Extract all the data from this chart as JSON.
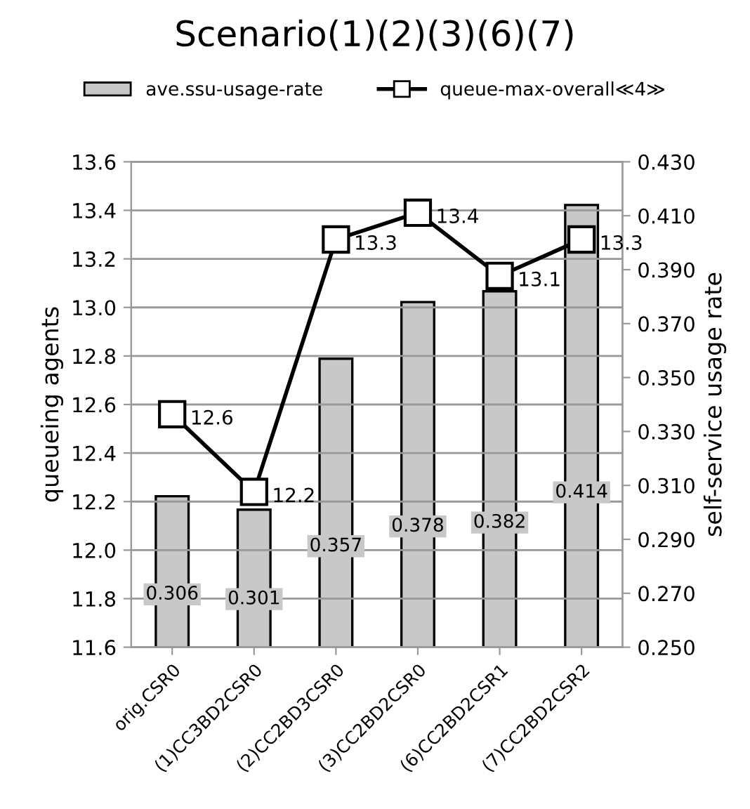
{
  "chart_data": {
    "type": "bar",
    "title": "Scenario(1)(2)(3)(6)(7)",
    "ylabel": "queueing agents",
    "y2label": "self-service usage rate",
    "categories": [
      "orig.CSR0",
      "(1)CC3BD2CSR0",
      "(2)CC2BD3CSR0",
      "(3)CC2BD2CSR0",
      "(6)CC2BD2CSR1",
      "(7)CC2BD2CSR2"
    ],
    "series": [
      {
        "name": "ave.ssu-usage-rate",
        "type": "bar",
        "axis": "y2",
        "color": "#c8c8c8",
        "values": [
          0.306,
          0.301,
          0.357,
          0.378,
          0.382,
          0.414
        ],
        "value_labels": [
          "0.306",
          "0.301",
          "0.357",
          "0.378",
          "0.382",
          "0.414"
        ]
      },
      {
        "name": "queue-max-overall≪4≫",
        "type": "line",
        "color": "#000000",
        "marker": "square",
        "line_style": "solid",
        "values": [
          12.56,
          12.24,
          13.28,
          13.39,
          13.13,
          13.28
        ],
        "value_labels": [
          "12.6",
          "12.2",
          "13.3",
          "13.4",
          "13.1",
          "13.3"
        ]
      }
    ],
    "ylim": [
      11.6,
      13.6
    ],
    "yticks": [
      11.6,
      11.8,
      {
        "value": 12.0,
        "label": "12.0"
      },
      12.2,
      12.4,
      12.6,
      12.8,
      {
        "value": 13.0,
        "label": "13.0"
      },
      13.2,
      13.4,
      13.6
    ],
    "y2lim": [
      0.25,
      0.43
    ],
    "y2ticks": [
      {
        "value": 0.25,
        "label": "0.250"
      },
      {
        "value": 0.27,
        "label": "0.270"
      },
      {
        "value": 0.29,
        "label": "0.290"
      },
      {
        "value": 0.31,
        "label": "0.310"
      },
      {
        "value": 0.33,
        "label": "0.330"
      },
      {
        "value": 0.35,
        "label": "0.350"
      },
      {
        "value": 0.37,
        "label": "0.370"
      },
      {
        "value": 0.39,
        "label": "0.390"
      },
      {
        "value": 0.41,
        "label": "0.410"
      },
      {
        "value": 0.43,
        "label": "0.430"
      }
    ],
    "grid": "y",
    "legend": "top"
  }
}
